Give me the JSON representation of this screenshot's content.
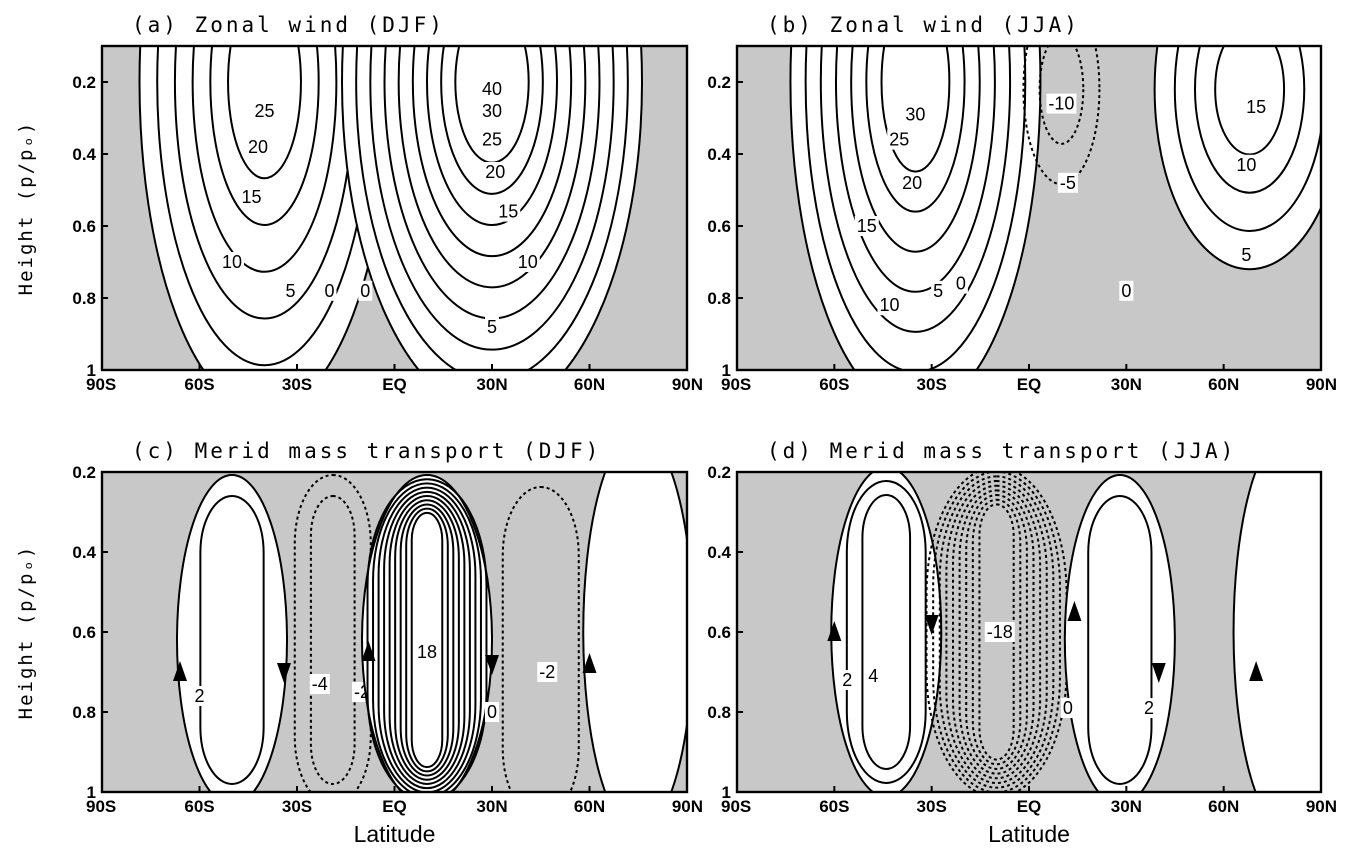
{
  "figure": {
    "colors": {
      "positive_fill": "#ffffff",
      "negative_fill": "#c8c8c8",
      "line": "#000000"
    }
  },
  "chart_data": [
    {
      "id": "a",
      "type": "contour",
      "title": "(a) Zonal wind (DJF)",
      "ylabel": "Height (p/pₒ)",
      "xlabel": "",
      "xlim": [
        -90,
        90
      ],
      "ylim": [
        1,
        0.1
      ],
      "x_ticks": [
        "90S",
        "60S",
        "30S",
        "EQ",
        "30N",
        "60N",
        "90N"
      ],
      "y_ticks": [
        "0.2",
        "0.4",
        "0.6",
        "0.8",
        "1"
      ],
      "shading": "negative values shaded grey",
      "cells": [
        {
          "center_lat": -40,
          "center_p": 0.2,
          "peak": 28,
          "levels": [
            0,
            5,
            10,
            15,
            20,
            25
          ],
          "contours": [
            {
              "value": 0,
              "label": "0",
              "label_at": [
                -20,
                0.78
              ]
            },
            {
              "value": 5,
              "label": "5",
              "label_at": [
                -32,
                0.78
              ]
            },
            {
              "value": 10,
              "label": "10",
              "label_at": [
                -50,
                0.7
              ]
            },
            {
              "value": 15,
              "label": "15",
              "label_at": [
                -44,
                0.52
              ]
            },
            {
              "value": 20,
              "label": "20",
              "label_at": [
                -42,
                0.38
              ]
            },
            {
              "value": 25,
              "label": "25",
              "label_at": [
                -40,
                0.28
              ]
            }
          ]
        },
        {
          "center_lat": 30,
          "center_p": 0.2,
          "peak": 42,
          "levels": [
            0,
            5,
            10,
            15,
            20,
            25,
            30,
            35,
            40
          ],
          "contours": [
            {
              "value": 0,
              "label": "0",
              "label_at": [
                -9,
                0.78
              ]
            },
            {
              "value": 5,
              "label": "5",
              "label_at": [
                30,
                0.88
              ]
            },
            {
              "value": 10,
              "label": "10",
              "label_at": [
                41,
                0.7
              ]
            },
            {
              "value": 15,
              "label": "15",
              "label_at": [
                35,
                0.56
              ]
            },
            {
              "value": 20,
              "label": "20",
              "label_at": [
                31,
                0.45
              ]
            },
            {
              "value": 25,
              "label": "25",
              "label_at": [
                30,
                0.36
              ]
            },
            {
              "value": 30,
              "label": "30",
              "label_at": [
                30,
                0.28
              ]
            },
            {
              "value": 40,
              "label": "40",
              "label_at": [
                30,
                0.22
              ]
            }
          ]
        }
      ]
    },
    {
      "id": "b",
      "type": "contour",
      "title": "(b) Zonal wind (JJA)",
      "ylabel": "",
      "xlabel": "",
      "xlim": [
        -90,
        90
      ],
      "ylim": [
        1,
        0.1
      ],
      "x_ticks": [
        "90S",
        "60S",
        "30S",
        "EQ",
        "30N",
        "60N",
        "90N"
      ],
      "y_ticks": [
        "0.2",
        "0.4",
        "0.6",
        "0.8",
        "1"
      ],
      "shading": "negative values shaded grey",
      "cells": [
        {
          "center_lat": -35,
          "center_p": 0.2,
          "peak": 33,
          "levels": [
            0,
            5,
            10,
            15,
            20,
            25,
            30
          ],
          "contours": [
            {
              "value": 0,
              "label": "0",
              "label_at": [
                -21,
                0.76
              ]
            },
            {
              "value": 5,
              "label": "5",
              "label_at": [
                -28,
                0.78
              ]
            },
            {
              "value": 10,
              "label": "10",
              "label_at": [
                -43,
                0.82
              ]
            },
            {
              "value": 15,
              "label": "15",
              "label_at": [
                -50,
                0.6
              ]
            },
            {
              "value": 20,
              "label": "20",
              "label_at": [
                -36,
                0.48
              ]
            },
            {
              "value": 25,
              "label": "25",
              "label_at": [
                -40,
                0.36
              ]
            },
            {
              "value": 30,
              "label": "30",
              "label_at": [
                -35,
                0.29
              ]
            }
          ]
        },
        {
          "center_lat": 10,
          "center_p": 0.22,
          "peak": -11,
          "levels": [
            -5,
            -10
          ],
          "contours": [
            {
              "value": -5,
              "label": "-5",
              "label_at": [
                12,
                0.48
              ]
            },
            {
              "value": -10,
              "label": "-10",
              "label_at": [
                10,
                0.26
              ]
            }
          ]
        },
        {
          "center_lat": 68,
          "center_p": 0.22,
          "peak": 17,
          "levels": [
            0,
            5,
            10,
            15
          ],
          "contours": [
            {
              "value": 0,
              "label": "0",
              "label_at": [
                30,
                0.78
              ]
            },
            {
              "value": 5,
              "label": "5",
              "label_at": [
                67,
                0.68
              ]
            },
            {
              "value": 10,
              "label": "10",
              "label_at": [
                67,
                0.43
              ]
            },
            {
              "value": 15,
              "label": "15",
              "label_at": [
                70,
                0.27
              ]
            }
          ]
        }
      ]
    },
    {
      "id": "c",
      "type": "contour",
      "title": "(c) Merid mass transport (DJF)",
      "ylabel": "Height (p/pₒ)",
      "xlabel": "Latitude",
      "xlim": [
        -90,
        90
      ],
      "ylim": [
        1,
        0.2
      ],
      "x_ticks": [
        "90S",
        "60S",
        "30S",
        "EQ",
        "30N",
        "60N",
        "90N"
      ],
      "y_ticks": [
        "0.2",
        "0.4",
        "0.6",
        "0.8",
        "1"
      ],
      "shading": "negative values shaded grey",
      "cells": [
        {
          "center_lat": -50,
          "center_p": 0.62,
          "peak": 3,
          "levels": [
            0,
            2
          ],
          "contours": [
            {
              "value": 2,
              "label": "2",
              "label_at": [
                -60,
                0.76
              ]
            }
          ]
        },
        {
          "center_lat": -19,
          "center_p": 0.62,
          "peak": -5,
          "levels": [
            -2,
            -4
          ],
          "contours": [
            {
              "value": -4,
              "label": "-4",
              "label_at": [
                -23,
                0.73
              ]
            },
            {
              "value": -2,
              "label": "-2",
              "label_at": [
                -10,
                0.75
              ]
            }
          ]
        },
        {
          "center_lat": 10,
          "center_p": 0.62,
          "peak": 19,
          "levels": [
            0,
            2,
            4,
            6,
            8,
            10,
            12,
            14,
            16,
            18
          ],
          "contours": [
            {
              "value": 18,
              "label": "18",
              "label_at": [
                10,
                0.65
              ]
            },
            {
              "value": 0,
              "label": "0",
              "label_at": [
                30,
                0.8
              ]
            }
          ]
        },
        {
          "center_lat": 45,
          "center_p": 0.65,
          "peak": -3,
          "levels": [
            -2
          ],
          "contours": [
            {
              "value": -2,
              "label": "-2",
              "label_at": [
                47,
                0.7
              ]
            }
          ]
        },
        {
          "center_lat": 75,
          "center_p": 0.6,
          "peak": 1,
          "levels": [
            0
          ],
          "contours": []
        }
      ],
      "arrows": [
        {
          "lat": -66,
          "p": 0.7,
          "direction": "up"
        },
        {
          "lat": -34,
          "p": 0.7,
          "direction": "down"
        },
        {
          "lat": -8,
          "p": 0.65,
          "direction": "up"
        },
        {
          "lat": 30,
          "p": 0.68,
          "direction": "down"
        },
        {
          "lat": 60,
          "p": 0.68,
          "direction": "up"
        }
      ]
    },
    {
      "id": "d",
      "type": "contour",
      "title": "(d) Merid mass transport (JJA)",
      "ylabel": "",
      "xlabel": "Latitude",
      "xlim": [
        -90,
        90
      ],
      "ylim": [
        1,
        0.2
      ],
      "x_ticks": [
        "90S",
        "60S",
        "30S",
        "EQ",
        "30N",
        "60N",
        "90N"
      ],
      "y_ticks": [
        "0.2",
        "0.4",
        "0.6",
        "0.8",
        "1"
      ],
      "shading": "negative values shaded grey",
      "cells": [
        {
          "center_lat": -44,
          "center_p": 0.6,
          "peak": 5,
          "levels": [
            0,
            2,
            4
          ],
          "contours": [
            {
              "value": 2,
              "label": "2",
              "label_at": [
                -56,
                0.72
              ]
            },
            {
              "value": 4,
              "label": "4",
              "label_at": [
                -48,
                0.71
              ]
            }
          ]
        },
        {
          "center_lat": -10,
          "center_p": 0.6,
          "peak": -19,
          "levels": [
            -2,
            -4,
            -6,
            -8,
            -10,
            -12,
            -14,
            -16,
            -18
          ],
          "contours": [
            {
              "value": -18,
              "label": "-18",
              "label_at": [
                -9,
                0.6
              ]
            }
          ]
        },
        {
          "center_lat": 28,
          "center_p": 0.62,
          "peak": 3,
          "levels": [
            0,
            2
          ],
          "contours": [
            {
              "value": 0,
              "label": "0",
              "label_at": [
                12,
                0.79
              ]
            },
            {
              "value": 2,
              "label": "2",
              "label_at": [
                37,
                0.79
              ]
            }
          ]
        },
        {
          "center_lat": 80,
          "center_p": 0.6,
          "peak": 1,
          "levels": [
            0
          ],
          "contours": []
        }
      ],
      "arrows": [
        {
          "lat": -60,
          "p": 0.6,
          "direction": "up"
        },
        {
          "lat": -30,
          "p": 0.58,
          "direction": "down"
        },
        {
          "lat": 14,
          "p": 0.55,
          "direction": "up"
        },
        {
          "lat": 40,
          "p": 0.7,
          "direction": "down"
        },
        {
          "lat": 70,
          "p": 0.7,
          "direction": "up"
        }
      ]
    }
  ]
}
